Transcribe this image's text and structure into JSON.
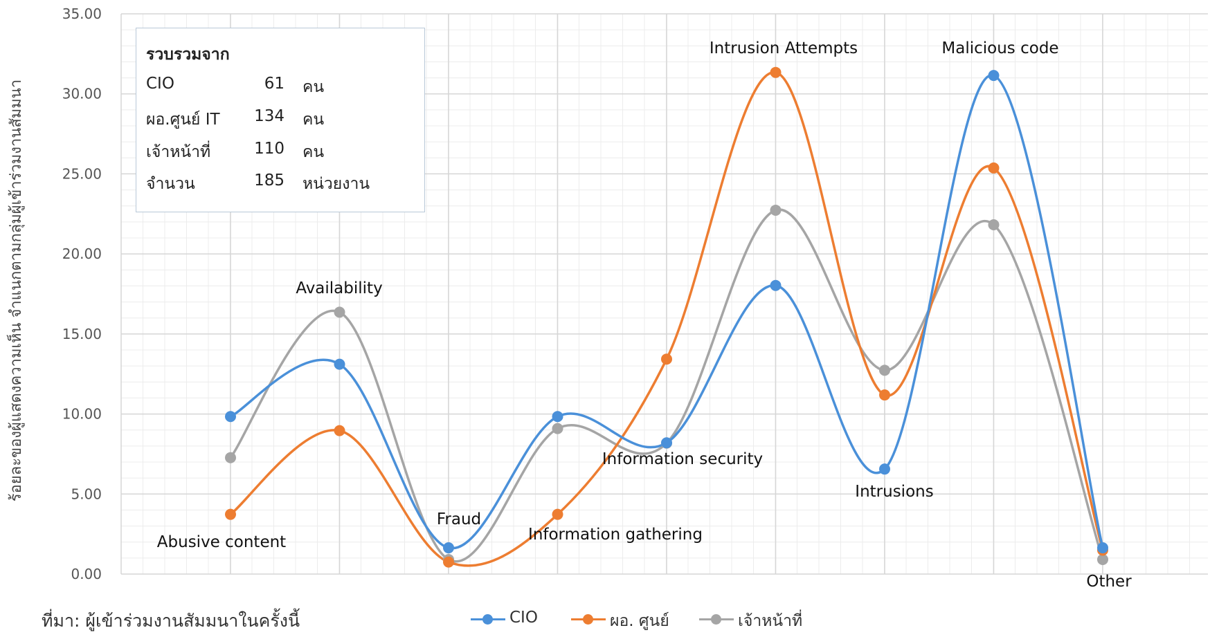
{
  "info_box": {
    "title": "รวบรวมจาก",
    "rows": [
      {
        "label": "CIO",
        "value": "61",
        "unit": "คน"
      },
      {
        "label": "ผอ.ศูนย์ IT",
        "value": "134",
        "unit": "คน"
      },
      {
        "label": "เจ้าหน้าที่",
        "value": "110",
        "unit": "คน"
      },
      {
        "label": "จำนวน",
        "value": "185",
        "unit": "หน่วยงาน"
      }
    ]
  },
  "source": "ที่มา: ผู้เข้าร่วมงานสัมมนาในครั้งนี้",
  "legend": [
    {
      "name": "CIO",
      "color": "#4a90d9"
    },
    {
      "name": "ผอ. ศูนย์",
      "color": "#ed7d31"
    },
    {
      "name": "เจ้าหน้าที่",
      "color": "#a5a5a5"
    }
  ],
  "chart_data": {
    "type": "line",
    "smooth": true,
    "ylabel": "ร้อยละของผู้แสดงความเห็น จำแนกตามกลุ่มผู้เข้าร่วมงานสัมมนา",
    "xlabel": "",
    "ylim": [
      0,
      35
    ],
    "yticks": [
      "0.00",
      "5.00",
      "10.00",
      "15.00",
      "20.00",
      "25.00",
      "30.00",
      "35.00"
    ],
    "grid": true,
    "legend_position": "bottom",
    "categories": [
      "Abusive content",
      "Availability",
      "Fraud",
      "Information gathering",
      "Information security",
      "Intrusion Attempts",
      "Intrusions",
      "Malicious code",
      "Other"
    ],
    "series": [
      {
        "name": "CIO",
        "color": "#4a90d9",
        "values": [
          9.84,
          13.11,
          1.64,
          9.84,
          8.2,
          18.03,
          6.56,
          31.15,
          1.64
        ]
      },
      {
        "name": "ผอ. ศูนย์",
        "color": "#ed7d31",
        "values": [
          3.73,
          8.96,
          0.75,
          3.73,
          13.43,
          31.34,
          11.19,
          25.37,
          1.49
        ]
      },
      {
        "name": "เจ้าหน้าที่",
        "color": "#a5a5a5",
        "values": [
          7.27,
          16.36,
          0.91,
          9.09,
          8.18,
          22.73,
          12.73,
          21.82,
          0.91
        ]
      }
    ]
  }
}
